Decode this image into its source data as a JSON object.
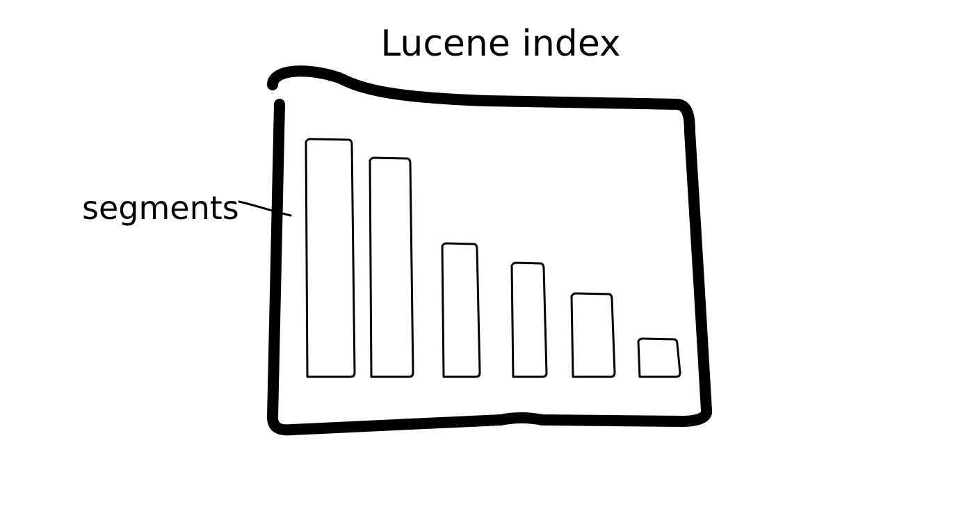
{
  "title": "Lucene index",
  "label": "segments",
  "segments": [
    {
      "relative_size": 1.0
    },
    {
      "relative_size": 0.92
    },
    {
      "relative_size": 0.56
    },
    {
      "relative_size": 0.48
    },
    {
      "relative_size": 0.35
    },
    {
      "relative_size": 0.16
    }
  ],
  "colors": {
    "ink": "#000000",
    "background": "#ffffff"
  }
}
